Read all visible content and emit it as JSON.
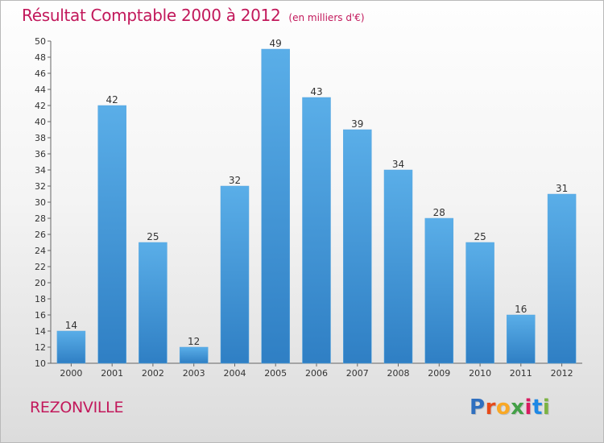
{
  "header": {
    "title": "Résultat Comptable 2000 à 2012",
    "subtitle": "(en milliers d'€)"
  },
  "footer": {
    "city": "REZONVILLE",
    "brand_letters": [
      "P",
      "r",
      "o",
      "x",
      "i",
      "t",
      "i"
    ],
    "brand_colors": [
      "#2f6fbf",
      "#e64a19",
      "#f9a825",
      "#43a047",
      "#d81b60",
      "#1e88e5",
      "#7cb342"
    ]
  },
  "chart_data": {
    "type": "bar",
    "title": "Résultat Comptable 2000 à 2012",
    "subtitle": "(en milliers d'€)",
    "categories": [
      "2000",
      "2001",
      "2002",
      "2003",
      "2004",
      "2005",
      "2006",
      "2007",
      "2008",
      "2009",
      "2010",
      "2011",
      "2012"
    ],
    "values": [
      14,
      42,
      25,
      12,
      32,
      49,
      43,
      39,
      34,
      28,
      25,
      16,
      31
    ],
    "ylim": [
      10,
      50
    ],
    "ytick_step": 2,
    "xlabel": "",
    "ylabel": "",
    "grid": false,
    "bar_color_light": "#5aaee8",
    "bar_color_dark": "#2f7fc4",
    "text_color": "#c2185b"
  }
}
